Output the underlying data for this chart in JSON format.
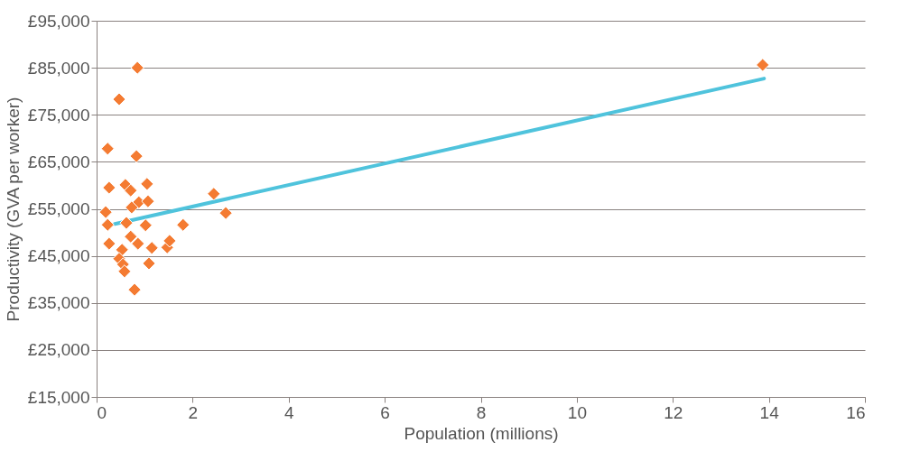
{
  "chart_data": {
    "type": "scatter",
    "xlabel": "Population (millions)",
    "ylabel": "Productivity (GVA per worker)",
    "xlim": [
      0,
      16
    ],
    "xticks": [
      0,
      2,
      4,
      6,
      8,
      10,
      12,
      14,
      16
    ],
    "ylim": [
      15000,
      95000
    ],
    "yticks": [
      {
        "value": 15000,
        "label": "£15,000"
      },
      {
        "value": 25000,
        "label": "£25,000"
      },
      {
        "value": 35000,
        "label": "£35,000"
      },
      {
        "value": 45000,
        "label": "£45,000"
      },
      {
        "value": 55000,
        "label": "£55,000"
      },
      {
        "value": 65000,
        "label": "£65,000"
      },
      {
        "value": 75000,
        "label": "£75,000"
      },
      {
        "value": 85000,
        "label": "£85,000"
      },
      {
        "value": 95000,
        "label": "£95,000"
      }
    ],
    "grid": "y",
    "series": [
      {
        "marker": "diamond",
        "color": "#f47b32",
        "x": [
          0.85,
          0.47,
          0.23,
          0.83,
          0.26,
          0.6,
          1.05,
          0.71,
          0.88,
          0.73,
          1.07,
          0.19,
          0.23,
          0.62,
          1.02,
          1.8,
          2.44,
          2.69,
          13.87,
          0.71,
          0.86,
          0.26,
          0.53,
          0.47,
          0.55,
          0.58,
          1.15,
          1.09,
          1.47,
          1.52,
          0.79
        ],
        "values": [
          85000,
          78300,
          67800,
          66200,
          59500,
          60100,
          60300,
          58900,
          56400,
          55300,
          56600,
          54300,
          51600,
          52000,
          51500,
          51600,
          58200,
          54100,
          85600,
          49100,
          47600,
          47600,
          46300,
          44400,
          43200,
          41700,
          46700,
          43400,
          46800,
          48200,
          37800
        ]
      },
      {
        "type": "line",
        "color": "#4fc3dc",
        "x": [
          0.38,
          13.9
        ],
        "values": [
          51800,
          82700
        ]
      }
    ]
  }
}
